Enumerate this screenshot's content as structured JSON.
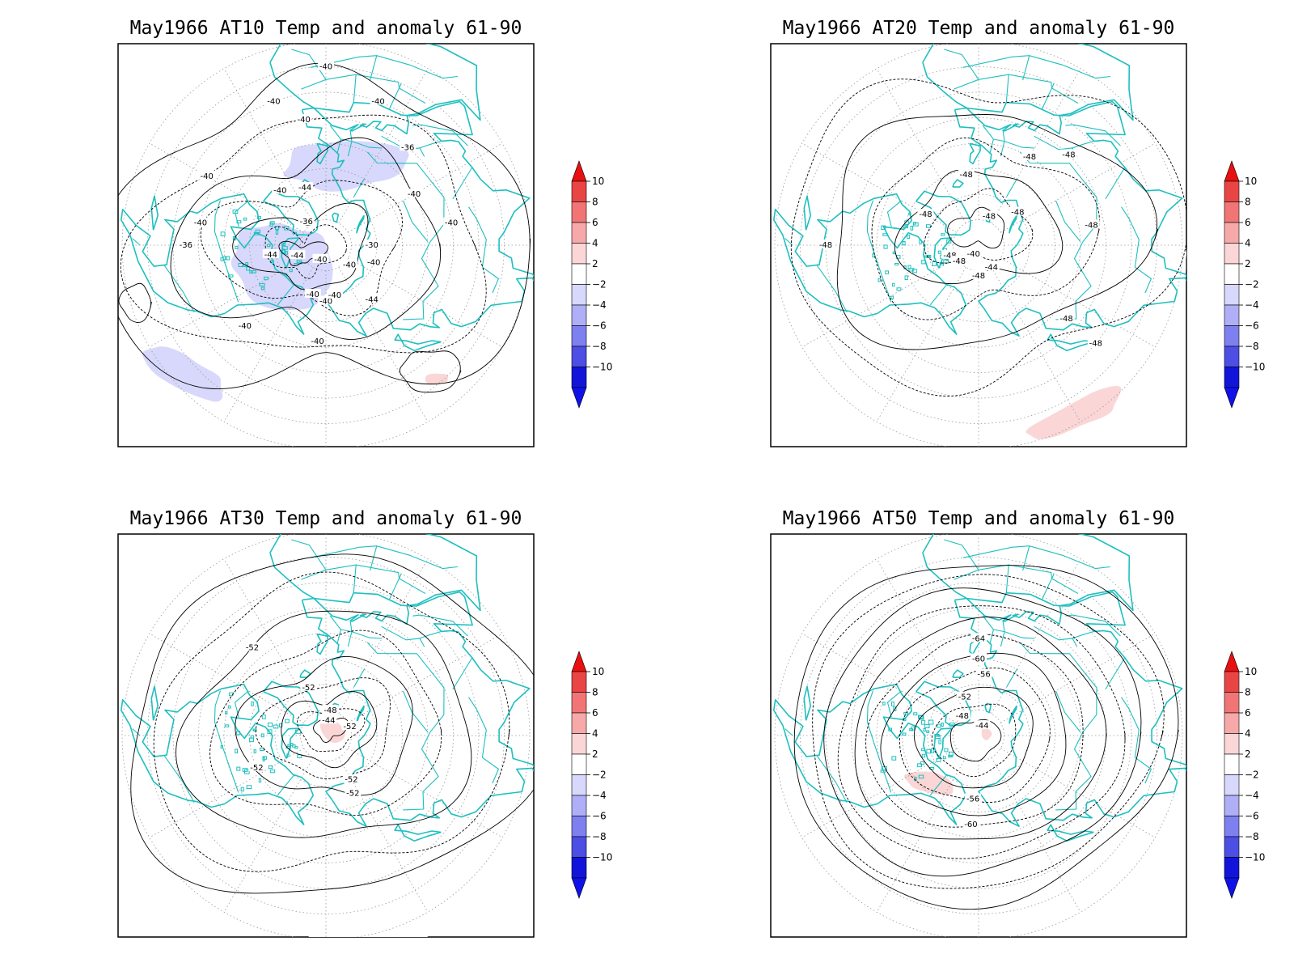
{
  "figure": {
    "colors": {
      "coast": "#1fbfbf",
      "grid": "#999999",
      "contour": "#000000",
      "warm_shade": "#fbd6d6",
      "cool_shade": "#d7d8fb"
    }
  },
  "panels": [
    {
      "id": "at10",
      "title": "May1966 AT10 Temp and anomaly 61-90",
      "contour_labels": [
        {
          "text": "-40",
          "lon": 185,
          "lat": 52
        },
        {
          "text": "-40",
          "lon": 225,
          "lat": 45
        },
        {
          "text": "-40",
          "lon": 180,
          "lat": 68
        },
        {
          "text": "-40",
          "lon": 195,
          "lat": 70
        },
        {
          "text": "-40",
          "lon": 170,
          "lat": 70
        },
        {
          "text": "-44",
          "lon": 140,
          "lat": 62
        },
        {
          "text": "-40",
          "lon": 280,
          "lat": 40
        },
        {
          "text": "-40",
          "lon": 80,
          "lat": 40
        },
        {
          "text": "-40",
          "lon": 60,
          "lat": 50
        },
        {
          "text": "-40",
          "lon": 110,
          "lat": 70
        },
        {
          "text": "-40",
          "lon": 130,
          "lat": 78
        },
        {
          "text": "-40",
          "lon": 200,
          "lat": 84
        },
        {
          "text": "-36",
          "lon": 320,
          "lat": 78
        },
        {
          "text": "-44",
          "lon": 250,
          "lat": 78
        },
        {
          "text": "-44",
          "lon": 260,
          "lat": 68
        },
        {
          "text": "-44",
          "lon": 340,
          "lat": 66
        },
        {
          "text": "-40",
          "lon": 320,
          "lat": 62
        },
        {
          "text": "-36",
          "lon": 270,
          "lat": 35
        },
        {
          "text": "-40",
          "lon": 300,
          "lat": 36
        },
        {
          "text": "-40",
          "lon": 20,
          "lat": 30
        },
        {
          "text": "-36",
          "lon": 40,
          "lat": 40
        },
        {
          "text": "-40",
          "lon": 350,
          "lat": 40
        },
        {
          "text": "-40",
          "lon": 360,
          "lat": 20
        },
        {
          "text": "-40",
          "lon": 340,
          "lat": 30
        },
        {
          "text": "-30",
          "lon": 90,
          "lat": 72
        }
      ]
    },
    {
      "id": "at20",
      "title": "May1966 AT20 Temp and anomaly 61-90",
      "contour_labels": [
        {
          "text": "-48",
          "lon": 20,
          "lat": 78
        },
        {
          "text": "-48",
          "lon": 50,
          "lat": 70
        },
        {
          "text": "-48",
          "lon": 250,
          "lat": 78
        },
        {
          "text": "-48",
          "lon": 230,
          "lat": 80
        },
        {
          "text": "-48",
          "lon": 300,
          "lat": 66
        },
        {
          "text": "-48",
          "lon": 30,
          "lat": 50
        },
        {
          "text": "-48",
          "lon": 45,
          "lat": 40
        },
        {
          "text": "-48",
          "lon": 80,
          "lat": 45
        },
        {
          "text": "-48",
          "lon": 350,
          "lat": 62
        },
        {
          "text": "-48",
          "lon": 270,
          "lat": 30
        },
        {
          "text": "-48",
          "lon": 130,
          "lat": 45
        },
        {
          "text": "-48",
          "lon": 130,
          "lat": 30
        },
        {
          "text": "-44",
          "lon": 150,
          "lat": 80
        },
        {
          "text": "-40",
          "lon": 210,
          "lat": 86
        },
        {
          "text": "-48",
          "lon": 180,
          "lat": 78
        }
      ]
    },
    {
      "id": "at30",
      "title": "May1966 AT30 Temp and anomaly 61-90",
      "contour_labels": [
        {
          "text": "-52",
          "lon": 150,
          "lat": 70
        },
        {
          "text": "-52",
          "lon": 155,
          "lat": 65
        },
        {
          "text": "-52",
          "lon": 245,
          "lat": 60
        },
        {
          "text": "-52",
          "lon": 70,
          "lat": 80
        },
        {
          "text": "-44",
          "lon": 10,
          "lat": 84
        },
        {
          "text": "-48",
          "lon": 10,
          "lat": 80
        },
        {
          "text": "-52",
          "lon": 340,
          "lat": 70
        },
        {
          "text": "-52",
          "lon": 320,
          "lat": 45
        }
      ]
    },
    {
      "id": "at50",
      "title": "May1966 AT50 Temp and anomaly 61-90",
      "contour_labels": [
        {
          "text": "-60",
          "lon": 185,
          "lat": 55
        },
        {
          "text": "-56",
          "lon": 185,
          "lat": 65
        },
        {
          "text": "-44",
          "lon": 20,
          "lat": 86
        },
        {
          "text": "-48",
          "lon": 320,
          "lat": 80
        },
        {
          "text": "-52",
          "lon": 340,
          "lat": 74
        },
        {
          "text": "-56",
          "lon": 5,
          "lat": 66
        },
        {
          "text": "-60",
          "lon": 0,
          "lat": 60
        },
        {
          "text": "-64",
          "lon": 0,
          "lat": 52
        }
      ]
    }
  ],
  "colorbar": {
    "ticks": [
      10,
      8,
      6,
      4,
      2,
      -2,
      -4,
      -6,
      -8,
      -10
    ],
    "tick_labels": [
      "10",
      "8",
      "6",
      "4",
      "2",
      "−2",
      "−4",
      "−6",
      "−8",
      "−10"
    ],
    "fill_colors": [
      "#d91c1c",
      "#ea4545",
      "#f27575",
      "#f7a8a8",
      "#fbd6d6",
      "#ffffff",
      "#d7d8fb",
      "#aeaff6",
      "#7f80ef",
      "#4c4ee4",
      "#1215d9"
    ],
    "arrow_top_color": "#e81010",
    "arrow_bottom_color": "#1010e8"
  }
}
